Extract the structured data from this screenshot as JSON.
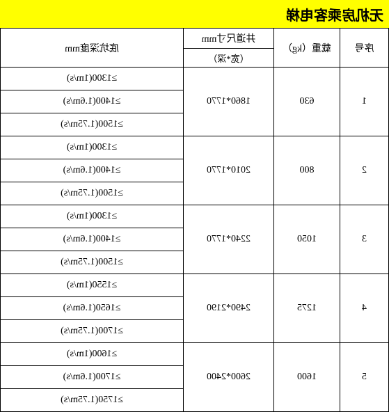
{
  "title": "无机房乘客电梯",
  "headers": {
    "seq": "序号",
    "load": "载重（kg）",
    "shaft": "井道尺寸mm",
    "shaft_sub": "（宽*深）",
    "pit": "底坑深度mm"
  },
  "rows": [
    {
      "seq": "1",
      "load": "630",
      "shaft": "1860*1770",
      "pits": [
        "≥1300(1m/s)",
        "≥1400(1.6m/s)",
        "≥1500(1.75m/s)"
      ]
    },
    {
      "seq": "2",
      "load": "800",
      "shaft": "2010*1770",
      "pits": [
        "≥1300(1m/s)",
        "≥1400(1.6m/s)",
        "≥1500(1.75m/s)"
      ]
    },
    {
      "seq": "3",
      "load": "1050",
      "shaft": "2240*1770",
      "pits": [
        "≥1300(1m/s)",
        "≥1400(1.6m/s)",
        "≥1500(1.75m/s)"
      ]
    },
    {
      "seq": "4",
      "load": "1275",
      "shaft": "2490*2190",
      "pits": [
        "≥1550(1m/s)",
        "≥1650(1.6m/s)",
        "≥1700(1.75m/s)"
      ]
    },
    {
      "seq": "5",
      "load": "1600",
      "shaft": "2600*2400",
      "pits": [
        "≥1600(1m/s)",
        "≥1700(1.6m/s)",
        "≥1750(1.75m/s)"
      ]
    }
  ]
}
